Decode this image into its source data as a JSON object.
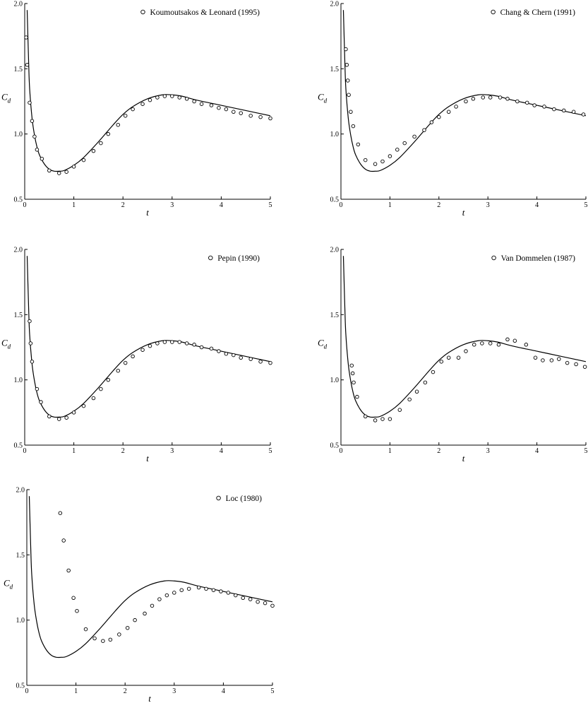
{
  "chart_data": [
    {
      "type": "scatter",
      "xlabel": "t",
      "ylabel": "C",
      "ylabel_sub": "d",
      "xlim": [
        0,
        5
      ],
      "ylim": [
        0.5,
        2.0
      ],
      "xticks": [
        "0",
        "1",
        "2",
        "3",
        "4",
        "5"
      ],
      "yticks": [
        "0.5",
        "1.0",
        "1.5",
        "2.0"
      ],
      "legend_position": "top-right",
      "series": [
        {
          "name": "",
          "kind": "line",
          "x": [
            0.05,
            0.08,
            0.1,
            0.15,
            0.2,
            0.25,
            0.3,
            0.4,
            0.5,
            0.6,
            0.7,
            0.8,
            1.0,
            1.2,
            1.5,
            1.8,
            2.0,
            2.2,
            2.5,
            2.8,
            3.0,
            3.2,
            3.5,
            4.0,
            4.5,
            5.0
          ],
          "y": [
            1.95,
            1.55,
            1.35,
            1.12,
            0.99,
            0.9,
            0.84,
            0.77,
            0.73,
            0.715,
            0.715,
            0.72,
            0.76,
            0.82,
            0.94,
            1.07,
            1.15,
            1.21,
            1.27,
            1.3,
            1.3,
            1.29,
            1.26,
            1.22,
            1.18,
            1.14
          ]
        },
        {
          "name": "Koumoutsakos & Leonard (1995)",
          "kind": "points",
          "x": [
            0.03,
            0.05,
            0.1,
            0.15,
            0.2,
            0.25,
            0.35,
            0.5,
            0.7,
            0.85,
            1.0,
            1.2,
            1.4,
            1.55,
            1.7,
            1.9,
            2.05,
            2.2,
            2.4,
            2.55,
            2.7,
            2.85,
            3.0,
            3.15,
            3.3,
            3.45,
            3.6,
            3.8,
            3.95,
            4.1,
            4.25,
            4.4,
            4.6,
            4.8,
            5.0
          ],
          "y": [
            1.74,
            1.53,
            1.24,
            1.1,
            0.98,
            0.88,
            0.81,
            0.72,
            0.7,
            0.71,
            0.75,
            0.8,
            0.87,
            0.93,
            1.0,
            1.07,
            1.14,
            1.19,
            1.23,
            1.26,
            1.28,
            1.29,
            1.29,
            1.28,
            1.27,
            1.25,
            1.23,
            1.22,
            1.2,
            1.19,
            1.17,
            1.16,
            1.14,
            1.13,
            1.12
          ]
        }
      ]
    },
    {
      "type": "scatter",
      "xlabel": "t",
      "ylabel": "C",
      "ylabel_sub": "d",
      "xlim": [
        0,
        5
      ],
      "ylim": [
        0.5,
        2.0
      ],
      "xticks": [
        "0",
        "1",
        "2",
        "3",
        "4",
        "5"
      ],
      "yticks": [
        "0.5",
        "1.0",
        "1.5",
        "2.0"
      ],
      "legend_position": "top-right",
      "series": [
        {
          "name": "",
          "kind": "line",
          "x": [
            0.05,
            0.08,
            0.1,
            0.15,
            0.2,
            0.25,
            0.3,
            0.4,
            0.5,
            0.6,
            0.7,
            0.8,
            1.0,
            1.2,
            1.5,
            1.8,
            2.0,
            2.2,
            2.5,
            2.8,
            3.0,
            3.2,
            3.5,
            4.0,
            4.5,
            5.0
          ],
          "y": [
            1.95,
            1.55,
            1.35,
            1.12,
            0.99,
            0.9,
            0.84,
            0.77,
            0.73,
            0.715,
            0.715,
            0.72,
            0.76,
            0.82,
            0.94,
            1.07,
            1.15,
            1.21,
            1.27,
            1.3,
            1.3,
            1.29,
            1.26,
            1.22,
            1.18,
            1.14
          ]
        },
        {
          "name": "Chang & Chern (1991)",
          "kind": "points",
          "x": [
            0.1,
            0.12,
            0.14,
            0.16,
            0.2,
            0.25,
            0.35,
            0.5,
            0.7,
            0.85,
            1.0,
            1.15,
            1.3,
            1.5,
            1.7,
            1.85,
            2.0,
            2.2,
            2.35,
            2.55,
            2.7,
            2.9,
            3.05,
            3.25,
            3.4,
            3.6,
            3.8,
            3.95,
            4.15,
            4.35,
            4.55,
            4.75,
            4.95
          ],
          "y": [
            1.65,
            1.53,
            1.41,
            1.3,
            1.17,
            1.06,
            0.92,
            0.8,
            0.77,
            0.79,
            0.83,
            0.88,
            0.93,
            0.98,
            1.03,
            1.09,
            1.13,
            1.17,
            1.21,
            1.25,
            1.27,
            1.28,
            1.28,
            1.28,
            1.27,
            1.25,
            1.24,
            1.22,
            1.21,
            1.19,
            1.18,
            1.17,
            1.15
          ]
        }
      ]
    },
    {
      "type": "scatter",
      "xlabel": "t",
      "ylabel": "C",
      "ylabel_sub": "d",
      "xlim": [
        0,
        5
      ],
      "ylim": [
        0.5,
        2.0
      ],
      "xticks": [
        "0",
        "1",
        "2",
        "3",
        "4",
        "5"
      ],
      "yticks": [
        "0.5",
        "1.0",
        "1.5",
        "2.0"
      ],
      "legend_position": "top-right",
      "series": [
        {
          "name": "",
          "kind": "line",
          "x": [
            0.05,
            0.08,
            0.1,
            0.15,
            0.2,
            0.25,
            0.3,
            0.4,
            0.5,
            0.6,
            0.7,
            0.8,
            1.0,
            1.2,
            1.5,
            1.8,
            2.0,
            2.2,
            2.5,
            2.8,
            3.0,
            3.2,
            3.5,
            4.0,
            4.5,
            5.0
          ],
          "y": [
            1.95,
            1.55,
            1.35,
            1.12,
            0.99,
            0.9,
            0.84,
            0.77,
            0.73,
            0.715,
            0.715,
            0.72,
            0.76,
            0.82,
            0.94,
            1.07,
            1.15,
            1.21,
            1.27,
            1.3,
            1.3,
            1.29,
            1.26,
            1.22,
            1.18,
            1.14
          ]
        },
        {
          "name": "Pepin (1990)",
          "kind": "points",
          "x": [
            0.1,
            0.12,
            0.15,
            0.25,
            0.33,
            0.5,
            0.7,
            0.85,
            1.0,
            1.2,
            1.4,
            1.55,
            1.7,
            1.9,
            2.05,
            2.2,
            2.4,
            2.55,
            2.7,
            2.85,
            3.0,
            3.15,
            3.3,
            3.45,
            3.6,
            3.8,
            3.95,
            4.1,
            4.25,
            4.4,
            4.6,
            4.8,
            5.0
          ],
          "y": [
            1.45,
            1.28,
            1.14,
            0.93,
            0.83,
            0.72,
            0.7,
            0.71,
            0.75,
            0.8,
            0.86,
            0.93,
            1.0,
            1.07,
            1.13,
            1.18,
            1.23,
            1.26,
            1.28,
            1.29,
            1.29,
            1.29,
            1.28,
            1.27,
            1.25,
            1.24,
            1.22,
            1.2,
            1.19,
            1.17,
            1.16,
            1.14,
            1.13
          ]
        }
      ]
    },
    {
      "type": "scatter",
      "xlabel": "t",
      "ylabel": "C",
      "ylabel_sub": "d",
      "xlim": [
        0,
        5
      ],
      "ylim": [
        0.5,
        2.0
      ],
      "xticks": [
        "0",
        "1",
        "2",
        "3",
        "4",
        "5"
      ],
      "yticks": [
        "0.5",
        "1.0",
        "1.5",
        "2.0"
      ],
      "legend_position": "top-right",
      "series": [
        {
          "name": "",
          "kind": "line",
          "x": [
            0.05,
            0.08,
            0.1,
            0.15,
            0.2,
            0.25,
            0.3,
            0.4,
            0.5,
            0.6,
            0.7,
            0.8,
            1.0,
            1.2,
            1.5,
            1.8,
            2.0,
            2.2,
            2.5,
            2.8,
            3.0,
            3.2,
            3.5,
            4.0,
            4.5,
            5.0
          ],
          "y": [
            1.95,
            1.55,
            1.35,
            1.12,
            0.99,
            0.9,
            0.84,
            0.77,
            0.73,
            0.715,
            0.715,
            0.72,
            0.76,
            0.82,
            0.94,
            1.07,
            1.15,
            1.21,
            1.27,
            1.3,
            1.3,
            1.29,
            1.26,
            1.22,
            1.18,
            1.14
          ]
        },
        {
          "name": "Van Dommelen (1987)",
          "kind": "points",
          "x": [
            0.22,
            0.24,
            0.26,
            0.33,
            0.5,
            0.7,
            0.85,
            1.0,
            1.2,
            1.4,
            1.55,
            1.72,
            1.88,
            2.05,
            2.2,
            2.4,
            2.55,
            2.72,
            2.88,
            3.05,
            3.22,
            3.4,
            3.55,
            3.78,
            3.97,
            4.12,
            4.3,
            4.45,
            4.62,
            4.8,
            4.98
          ],
          "y": [
            1.11,
            1.05,
            0.98,
            0.87,
            0.72,
            0.69,
            0.7,
            0.7,
            0.77,
            0.85,
            0.91,
            0.98,
            1.06,
            1.14,
            1.17,
            1.17,
            1.22,
            1.27,
            1.28,
            1.28,
            1.27,
            1.31,
            1.3,
            1.27,
            1.17,
            1.15,
            1.15,
            1.16,
            1.13,
            1.12,
            1.1
          ]
        }
      ]
    },
    {
      "type": "scatter",
      "xlabel": "t",
      "ylabel": "C",
      "ylabel_sub": "d",
      "xlim": [
        0,
        5
      ],
      "ylim": [
        0.5,
        2.0
      ],
      "xticks": [
        "0",
        "1",
        "2",
        "3",
        "4",
        "5"
      ],
      "yticks": [
        "0.5",
        "1.0",
        "1.5",
        "2.0"
      ],
      "legend_position": "top-right",
      "series": [
        {
          "name": "",
          "kind": "line",
          "x": [
            0.05,
            0.08,
            0.1,
            0.15,
            0.2,
            0.25,
            0.3,
            0.4,
            0.5,
            0.6,
            0.7,
            0.8,
            1.0,
            1.2,
            1.5,
            1.8,
            2.0,
            2.2,
            2.5,
            2.8,
            3.0,
            3.2,
            3.5,
            4.0,
            4.5,
            5.0
          ],
          "y": [
            1.95,
            1.55,
            1.35,
            1.12,
            0.99,
            0.9,
            0.84,
            0.77,
            0.73,
            0.715,
            0.715,
            0.72,
            0.76,
            0.82,
            0.94,
            1.07,
            1.15,
            1.21,
            1.27,
            1.3,
            1.3,
            1.29,
            1.26,
            1.22,
            1.18,
            1.14
          ]
        },
        {
          "name": "Loc (1980)",
          "kind": "points",
          "x": [
            0.68,
            0.75,
            0.85,
            0.95,
            1.02,
            1.2,
            1.38,
            1.55,
            1.7,
            1.88,
            2.05,
            2.2,
            2.4,
            2.55,
            2.7,
            2.85,
            3.0,
            3.15,
            3.3,
            3.5,
            3.65,
            3.8,
            3.95,
            4.1,
            4.25,
            4.4,
            4.55,
            4.7,
            4.85,
            5.0
          ],
          "y": [
            1.82,
            1.61,
            1.38,
            1.17,
            1.07,
            0.93,
            0.86,
            0.84,
            0.85,
            0.89,
            0.94,
            1.0,
            1.05,
            1.11,
            1.16,
            1.19,
            1.21,
            1.23,
            1.24,
            1.25,
            1.24,
            1.23,
            1.22,
            1.21,
            1.19,
            1.17,
            1.16,
            1.14,
            1.13,
            1.11
          ]
        }
      ]
    }
  ]
}
